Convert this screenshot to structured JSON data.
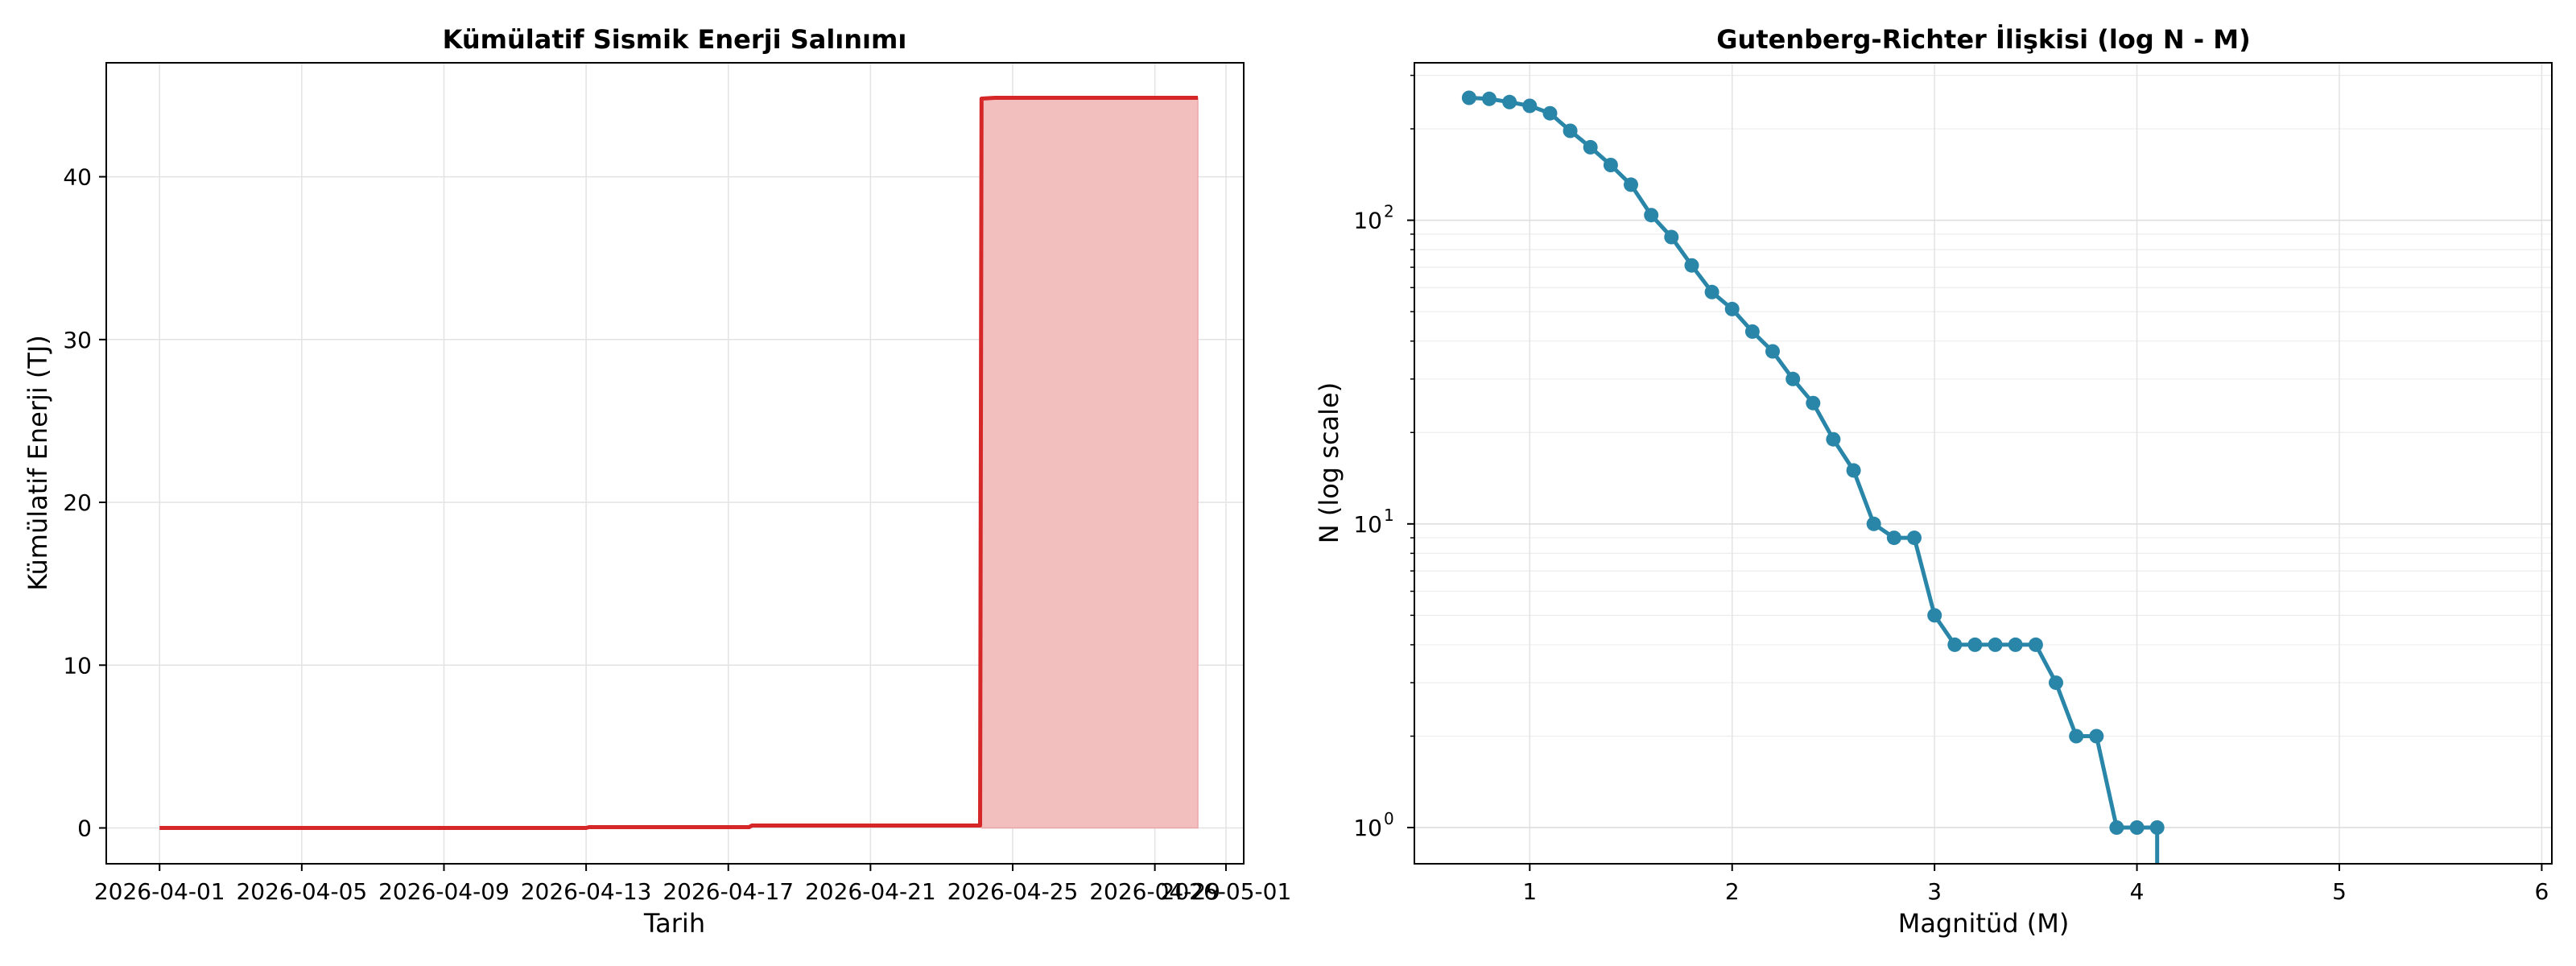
{
  "chart_data": [
    {
      "type": "area",
      "title": "Kümülatif Sismik Enerji Salınımı",
      "xlabel": "Tarih",
      "ylabel": "Kümülatif Enerji (TJ)",
      "xlim": [
        "2026-03-30T12:00",
        "2026-05-01T12:00"
      ],
      "ylim": [
        -2.2,
        47
      ],
      "x_ticks": [
        "2026-04-01",
        "2026-04-05",
        "2026-04-09",
        "2026-04-13",
        "2026-04-17",
        "2026-04-21",
        "2026-04-25",
        "2026-04-29",
        "2026-05-01"
      ],
      "y_ticks": [
        0,
        10,
        20,
        30,
        40
      ],
      "grid": true,
      "series": [
        {
          "color": "#d62728",
          "fill_color": "#f2bebe",
          "points": [
            [
              "2026-04-01T00:00",
              0.0
            ],
            [
              "2026-04-13T00:00",
              0.0
            ],
            [
              "2026-04-13T02:00",
              0.05
            ],
            [
              "2026-04-17T14:00",
              0.05
            ],
            [
              "2026-04-17T16:00",
              0.15
            ],
            [
              "2026-04-24T02:00",
              0.15
            ],
            [
              "2026-04-24T03:00",
              44.8
            ],
            [
              "2026-04-24T12:00",
              44.85
            ],
            [
              "2026-04-30T05:00",
              44.85
            ]
          ],
          "fill_from": "2026-04-24T03:00"
        }
      ]
    },
    {
      "type": "line",
      "title": "Gutenberg-Richter İlişkisi (log N - M)",
      "xlabel": "Magnitüd (M)",
      "ylabel": "N (log scale)",
      "xlim": [
        0.43,
        6.05
      ],
      "ylim": [
        0.76,
        330
      ],
      "y_scale": "log",
      "x_ticks": [
        1,
        2,
        3,
        4,
        5,
        6
      ],
      "y_ticks": [
        {
          "value": 1,
          "base": "10",
          "exp": "0"
        },
        {
          "value": 10,
          "base": "10",
          "exp": "1"
        },
        {
          "value": 100,
          "base": "10",
          "exp": "2"
        }
      ],
      "grid": true,
      "color": "#2a86a8",
      "x": [
        0.7,
        0.8,
        0.9,
        1.0,
        1.1,
        1.2,
        1.3,
        1.4,
        1.5,
        1.6,
        1.7,
        1.8,
        1.9,
        2.0,
        2.1,
        2.2,
        2.3,
        2.4,
        2.5,
        2.6,
        2.7,
        2.8,
        2.9,
        3.0,
        3.1,
        3.2,
        3.3,
        3.4,
        3.5,
        3.6,
        3.7,
        3.8,
        3.9,
        4.0,
        4.1
      ],
      "y": [
        253,
        251,
        245,
        238,
        225,
        197,
        174,
        152,
        131,
        104,
        88,
        71,
        58,
        51,
        43,
        37,
        30,
        25,
        19,
        15,
        10,
        9,
        9,
        5,
        4,
        4,
        4,
        4,
        4,
        3,
        2,
        2,
        1,
        1,
        1
      ],
      "tail_to": {
        "x": 4.1,
        "y": 0
      }
    }
  ]
}
